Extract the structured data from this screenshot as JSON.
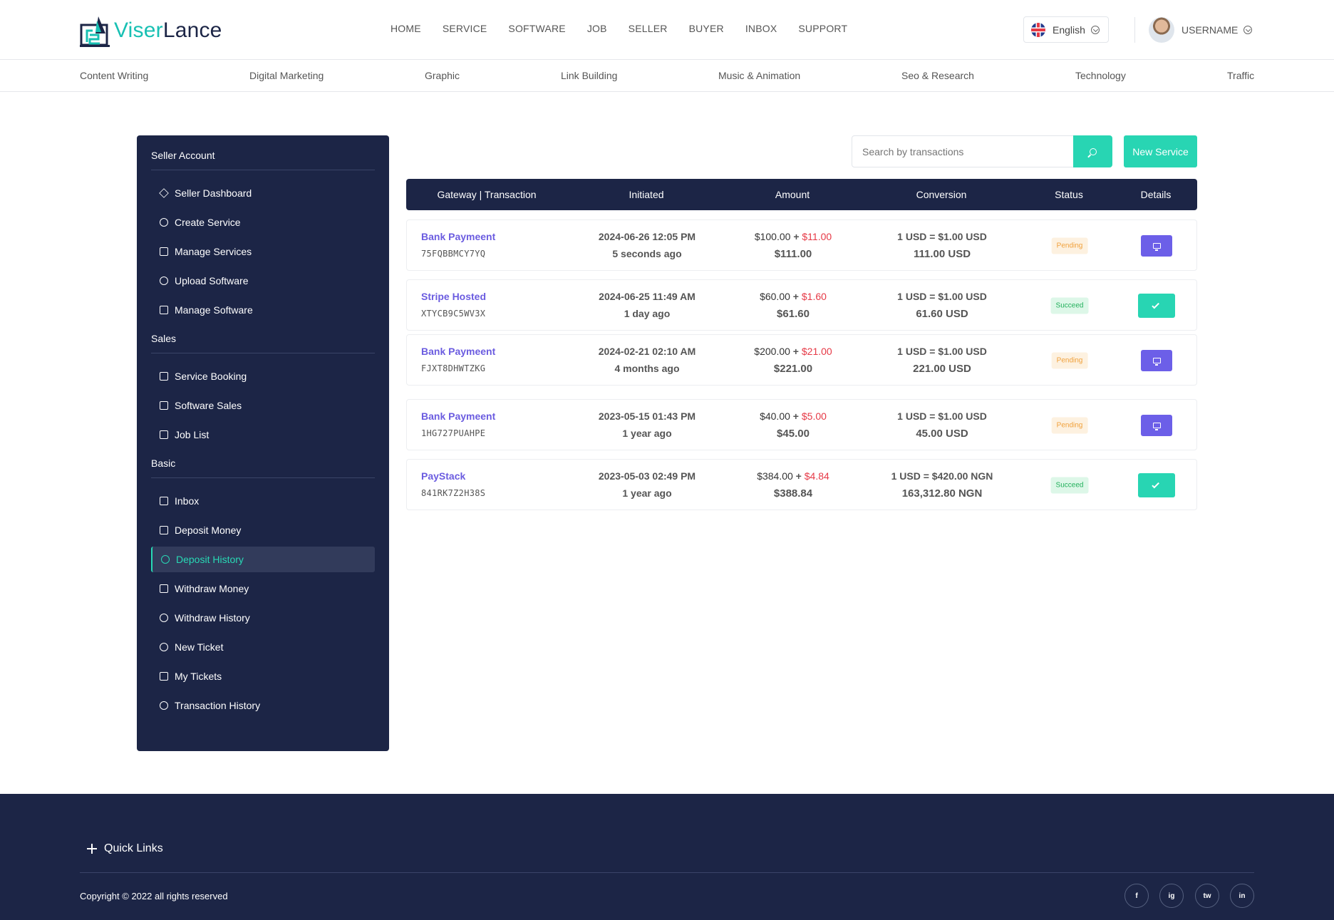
{
  "brand": {
    "part1": "Viser",
    "part2": "Lance"
  },
  "nav": [
    "HOME",
    "SERVICE",
    "SOFTWARE",
    "JOB",
    "SELLER",
    "BUYER",
    "INBOX",
    "SUPPORT"
  ],
  "language": "English",
  "username": "USERNAME",
  "categories": [
    "Content Writing",
    "Digital Marketing",
    "Graphic",
    "Link Building",
    "Music & Animation",
    "Seo & Research",
    "Technology",
    "Traffic"
  ],
  "sidebar": {
    "groups": [
      {
        "title": "Seller Account",
        "items": [
          "Seller Dashboard",
          "Create Service",
          "Manage Services",
          "Upload Software",
          "Manage Software"
        ]
      },
      {
        "title": "Sales",
        "items": [
          "Service Booking",
          "Software Sales",
          "Job List"
        ]
      },
      {
        "title": "Basic",
        "items": [
          "Inbox",
          "Deposit Money",
          "Deposit History",
          "Withdraw Money",
          "Withdraw History",
          "New Ticket",
          "My Tickets",
          "Transaction History"
        ]
      }
    ],
    "active": "Deposit History"
  },
  "search": {
    "placeholder": "Search by transactions"
  },
  "new_service_label": "New Service",
  "table": {
    "headers": [
      "Gateway | Transaction",
      "Initiated",
      "Amount",
      "Conversion",
      "Status",
      "Details"
    ],
    "rows": [
      {
        "gateway": "Bank Paymeent",
        "trx": "75FQBBMCY7YQ",
        "date": "2024-06-26 12:05 PM",
        "ago": "5 seconds ago",
        "amount": "$100.00",
        "charge": "$11.00",
        "total": "$111.00",
        "rate": "1 USD = $1.00 USD",
        "final": "111.00 USD",
        "status": "Pending"
      },
      {
        "gateway": "Stripe Hosted",
        "trx": "XTYCB9C5WV3X",
        "date": "2024-06-25 11:49 AM",
        "ago": "1 day ago",
        "amount": "$60.00",
        "charge": "$1.60",
        "total": "$61.60",
        "rate": "1 USD = $1.00 USD",
        "final": "61.60 USD",
        "status": "Succeed"
      },
      {
        "gateway": "Bank Paymeent",
        "trx": "FJXT8DHWTZKG",
        "date": "2024-02-21 02:10 AM",
        "ago": "4 months ago",
        "amount": "$200.00",
        "charge": "$21.00",
        "total": "$221.00",
        "rate": "1 USD = $1.00 USD",
        "final": "221.00 USD",
        "status": "Pending"
      },
      {
        "gateway": "Bank Paymeent",
        "trx": "1HG727PUAHPE",
        "date": "2023-05-15 01:43 PM",
        "ago": "1 year ago",
        "amount": "$40.00",
        "charge": "$5.00",
        "total": "$45.00",
        "rate": "1 USD = $1.00 USD",
        "final": "45.00 USD",
        "status": "Pending"
      },
      {
        "gateway": "PayStack",
        "trx": "841RK7Z2H38S",
        "date": "2023-05-03 02:49 PM",
        "ago": "1 year ago",
        "amount": "$384.00",
        "charge": "$4.84",
        "total": "$388.84",
        "rate": "1 USD = $420.00 NGN",
        "final": "163,312.80 NGN",
        "status": "Succeed"
      }
    ]
  },
  "footer": {
    "quick_links": "Quick Links",
    "copyright": "Copyright © 2022 all rights reserved",
    "social": [
      "f",
      "ig",
      "tw",
      "in"
    ]
  },
  "colors": {
    "navy": "#1c2546",
    "accent": "#28d5b3",
    "purple": "#6c5fe8",
    "charge": "#e63946"
  }
}
